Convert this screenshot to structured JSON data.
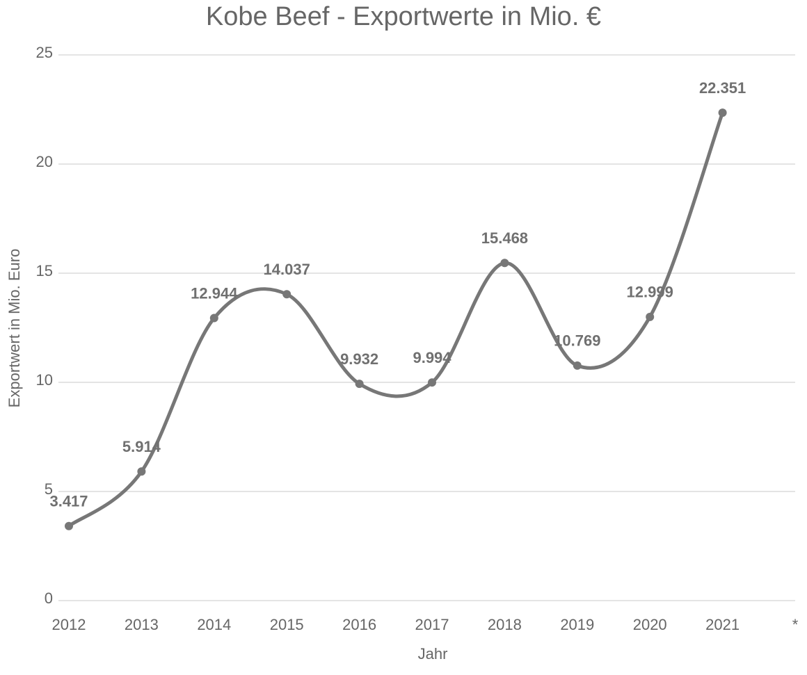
{
  "chart_data": {
    "type": "line",
    "title": "Kobe Beef - Exportwerte in Mio. €",
    "x_label": "Jahr",
    "y_label": "Exportwert in Mio. Euro",
    "categories": [
      "2012",
      "2013",
      "2014",
      "2015",
      "2016",
      "2017",
      "2018",
      "2019",
      "2020",
      "2021",
      "*"
    ],
    "series": [
      {
        "name": "Exportwert",
        "color": "#777777",
        "values": [
          3.417,
          5.914,
          12.944,
          14.037,
          9.932,
          9.994,
          15.468,
          10.769,
          12.999,
          22.351,
          null
        ]
      }
    ],
    "ylim": [
      0,
      25
    ],
    "yticks": [
      0,
      5,
      10,
      15,
      20,
      25
    ],
    "grid": true,
    "smooth": true
  }
}
